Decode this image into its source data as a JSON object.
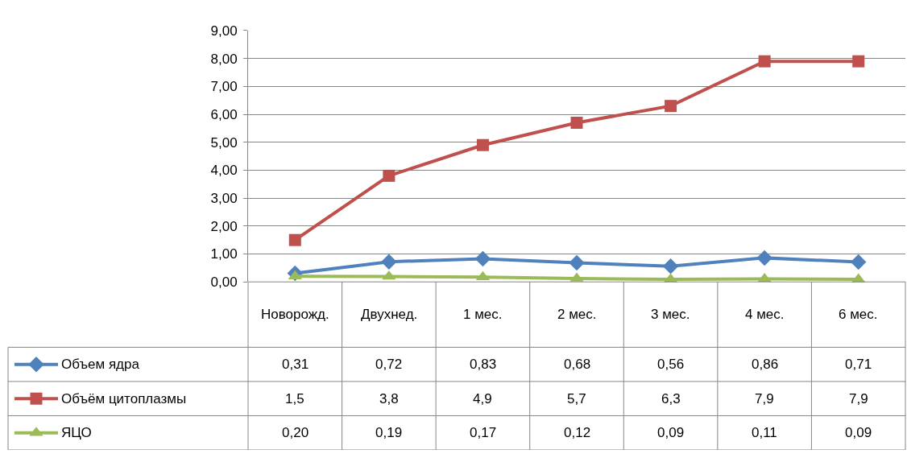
{
  "chart_data": {
    "type": "line",
    "categories": [
      "Новорожд.",
      "Двухнед.",
      "1 мес.",
      "2 мес.",
      "3 мес.",
      "4 мес.",
      "6 мес."
    ],
    "series": [
      {
        "name": "Объем ядра",
        "color": "#4f81bd",
        "marker": "diamond",
        "values": [
          0.31,
          0.72,
          0.83,
          0.68,
          0.56,
          0.86,
          0.71
        ],
        "value_labels": [
          "0,31",
          "0,72",
          "0,83",
          "0,68",
          "0,56",
          "0,86",
          "0,71"
        ]
      },
      {
        "name": "Объём цитоплазмы",
        "color": "#c0504d",
        "marker": "square",
        "values": [
          1.5,
          3.8,
          4.9,
          5.7,
          6.3,
          7.9,
          7.9
        ],
        "value_labels": [
          "1,5",
          "3,8",
          "4,9",
          "5,7",
          "6,3",
          "7,9",
          "7,9"
        ]
      },
      {
        "name": "ЯЦО",
        "color": "#9bbb59",
        "marker": "triangle",
        "values": [
          0.2,
          0.19,
          0.17,
          0.12,
          0.09,
          0.11,
          0.09
        ],
        "value_labels": [
          "0,20",
          "0,19",
          "0,17",
          "0,12",
          "0,09",
          "0,11",
          "0,09"
        ]
      }
    ],
    "ylim": [
      0,
      9
    ],
    "yticks": [
      {
        "value": 0,
        "label": "0,00"
      },
      {
        "value": 1,
        "label": "1,00"
      },
      {
        "value": 2,
        "label": "2,00"
      },
      {
        "value": 3,
        "label": "3,00"
      },
      {
        "value": 4,
        "label": "4,00"
      },
      {
        "value": 5,
        "label": "5,00"
      },
      {
        "value": 6,
        "label": "6,00"
      },
      {
        "value": 7,
        "label": "7,00"
      },
      {
        "value": 8,
        "label": "8,00"
      },
      {
        "value": 9,
        "label": "9,00"
      }
    ],
    "grid": "y",
    "legend": "bottom left",
    "line_style": "solid"
  }
}
